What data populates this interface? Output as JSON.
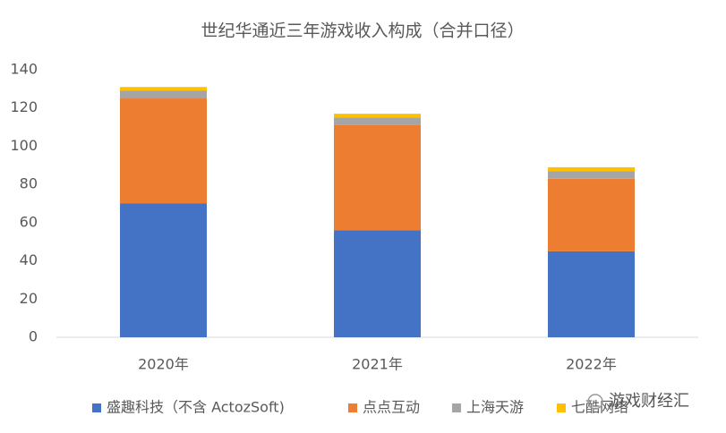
{
  "chart_data": {
    "type": "stacked_bar",
    "title": "世纪华通近三年游戏收入构成（合并口径）",
    "categories": [
      "2020年",
      "2021年",
      "2022年"
    ],
    "series": [
      {
        "name": "盛趣科技（不含 ActozSoft)",
        "color": "#4472c4",
        "values": [
          70,
          56,
          45
        ]
      },
      {
        "name": "点点互动",
        "color": "#ed7d31",
        "values": [
          55,
          55,
          38
        ]
      },
      {
        "name": "上海天游",
        "color": "#a5a5a5",
        "values": [
          4,
          4,
          4
        ]
      },
      {
        "name": "七酷网络",
        "color": "#ffc000",
        "values": [
          2,
          2,
          2
        ]
      }
    ],
    "ylim": [
      0,
      140
    ],
    "yticks": [
      0,
      20,
      40,
      60,
      80,
      100,
      120,
      140
    ],
    "grid": false,
    "legend": "bottom",
    "watermark": "游戏财经汇"
  }
}
